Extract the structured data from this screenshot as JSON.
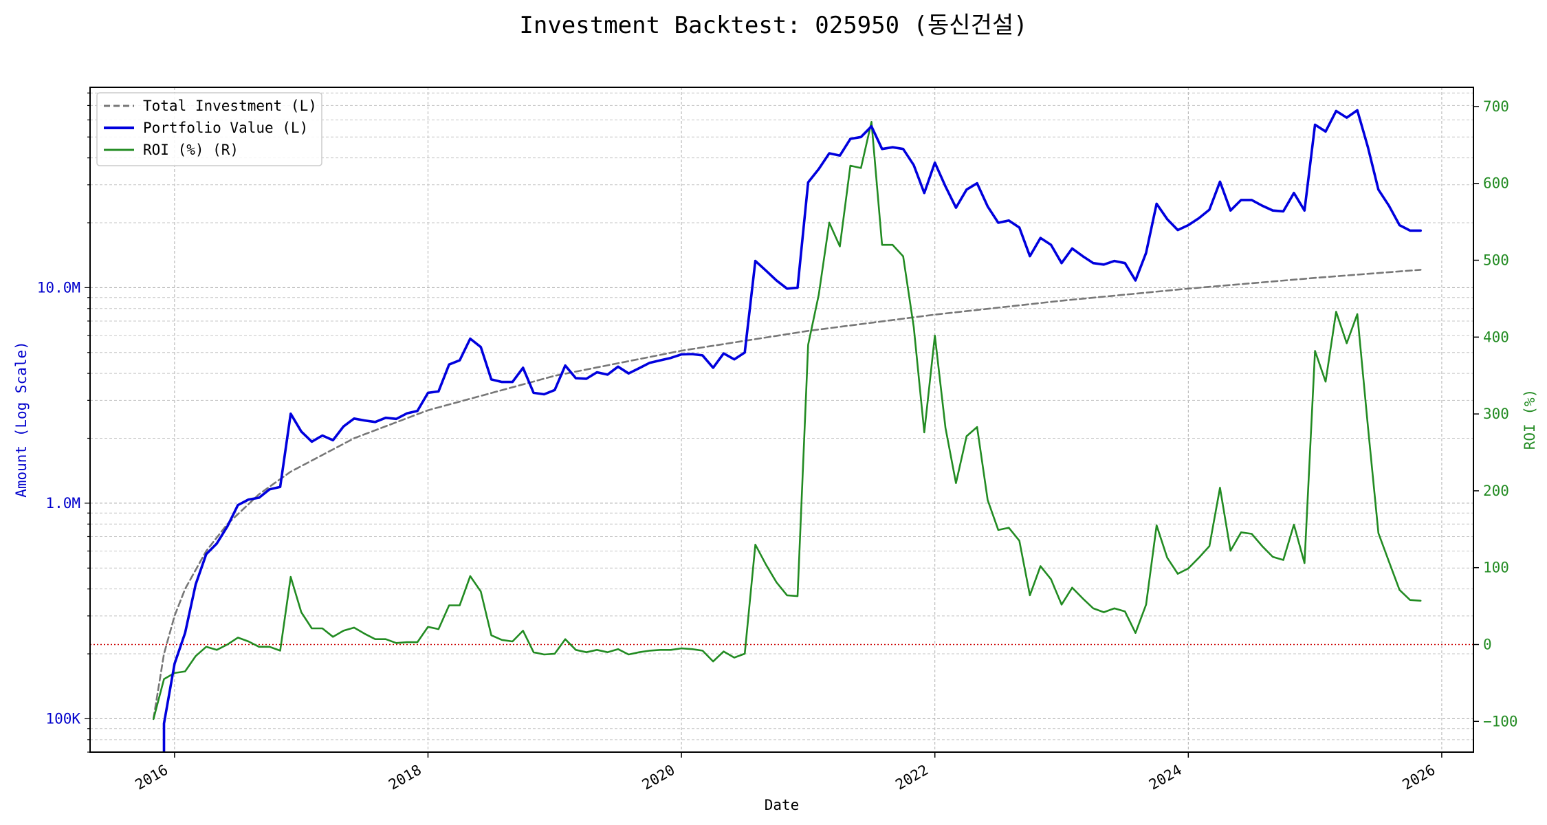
{
  "chart_data": {
    "type": "line",
    "title": "Investment Backtest: 025950 (동신건설)",
    "xlabel": "Date",
    "ylabel_left": "Amount (Log Scale)",
    "ylabel_right": "ROI (%)",
    "left_scale": "log",
    "left_ylim": [
      70000,
      85000000
    ],
    "right_ylim": [
      -140,
      725
    ],
    "xlim": [
      "2015-05-01",
      "2026-04-01"
    ],
    "grid": true,
    "legend_position": "top-left",
    "x_ticks": [
      "2016",
      "2018",
      "2020",
      "2022",
      "2024",
      "2026"
    ],
    "left_ticks": [
      {
        "value": 100000,
        "label": "100K"
      },
      {
        "value": 1000000,
        "label": "1.0M"
      },
      {
        "value": 10000000,
        "label": "10.0M"
      }
    ],
    "right_ticks": [
      -100,
      0,
      100,
      200,
      300,
      400,
      500,
      600,
      700
    ],
    "reference_line": {
      "axis": "right",
      "value": 0,
      "color": "#cc0000",
      "style": "dotted"
    },
    "series": [
      {
        "name": "Total Investment (L)",
        "axis": "left",
        "color": "#777777",
        "style": "dashed",
        "x": [
          "2015-11-01",
          "2015-12-01",
          "2016-01-01",
          "2016-02-01",
          "2016-04-01",
          "2016-06-01",
          "2016-09-01",
          "2016-12-01",
          "2017-06-01",
          "2018-01-01",
          "2019-01-01",
          "2020-01-01",
          "2021-01-01",
          "2022-01-01",
          "2023-01-01",
          "2024-01-01",
          "2025-01-01",
          "2025-11-01"
        ],
        "values": [
          100000,
          200000,
          300000,
          400000,
          600000,
          800000,
          1100000,
          1400000,
          2000000,
          2700000,
          3900000,
          5100000,
          6300000,
          7500000,
          8700000,
          9900000,
          11100000,
          12100000
        ]
      },
      {
        "name": "Portfolio Value (L)",
        "axis": "left",
        "color": "#0000dd",
        "style": "solid",
        "x": [
          "2015-12-01",
          "2016-01-01",
          "2016-02-01",
          "2016-03-01",
          "2016-04-01",
          "2016-05-01",
          "2016-06-01",
          "2016-07-01",
          "2016-08-01",
          "2016-09-01",
          "2016-10-01",
          "2016-11-01",
          "2016-12-01",
          "2017-01-01",
          "2017-02-01",
          "2017-03-01",
          "2017-04-01",
          "2017-05-01",
          "2017-06-01",
          "2017-07-01",
          "2017-08-01",
          "2017-09-01",
          "2017-10-01",
          "2017-11-01",
          "2017-12-01",
          "2018-01-01",
          "2018-02-01",
          "2018-03-01",
          "2018-04-01",
          "2018-05-01",
          "2018-06-01",
          "2018-07-01",
          "2018-08-01",
          "2018-09-01",
          "2018-10-01",
          "2018-11-01",
          "2018-12-01",
          "2019-01-01",
          "2019-02-01",
          "2019-03-01",
          "2019-04-01",
          "2019-05-01",
          "2019-06-01",
          "2019-07-01",
          "2019-08-01",
          "2019-09-01",
          "2019-10-01",
          "2019-11-01",
          "2019-12-01",
          "2020-01-01",
          "2020-02-01",
          "2020-03-01",
          "2020-04-01",
          "2020-05-01",
          "2020-06-01",
          "2020-07-01",
          "2020-08-01",
          "2020-09-01",
          "2020-10-01",
          "2020-11-01",
          "2020-12-01",
          "2021-01-01",
          "2021-02-01",
          "2021-03-01",
          "2021-04-01",
          "2021-05-01",
          "2021-06-01",
          "2021-07-01",
          "2021-08-01",
          "2021-09-01",
          "2021-10-01",
          "2021-11-01",
          "2021-12-01",
          "2022-01-01",
          "2022-02-01",
          "2022-03-01",
          "2022-04-01",
          "2022-05-01",
          "2022-06-01",
          "2022-07-01",
          "2022-08-01",
          "2022-09-01",
          "2022-10-01",
          "2022-11-01",
          "2022-12-01",
          "2023-01-01",
          "2023-02-01",
          "2023-03-01",
          "2023-04-01",
          "2023-05-01",
          "2023-06-01",
          "2023-07-01",
          "2023-08-01",
          "2023-09-01",
          "2023-10-01",
          "2023-11-01",
          "2023-12-01",
          "2024-01-01",
          "2024-02-01",
          "2024-03-01",
          "2024-04-01",
          "2024-05-01",
          "2024-06-01",
          "2024-07-01",
          "2024-08-01",
          "2024-09-01",
          "2024-10-01",
          "2024-11-01",
          "2024-12-01",
          "2025-01-01",
          "2025-02-01",
          "2025-03-01",
          "2025-04-01",
          "2025-05-01",
          "2025-06-01",
          "2025-07-01",
          "2025-08-01",
          "2025-09-01",
          "2025-10-01",
          "2025-11-01"
        ],
        "values": [
          95000,
          180000,
          250000,
          420000,
          580000,
          650000,
          780000,
          980000,
          1040000,
          1060000,
          1160000,
          1190000,
          2600000,
          2150000,
          1930000,
          2060000,
          1960000,
          2270000,
          2470000,
          2420000,
          2380000,
          2490000,
          2460000,
          2610000,
          2680000,
          3250000,
          3300000,
          4400000,
          4600000,
          5800000,
          5300000,
          3750000,
          3650000,
          3650000,
          4250000,
          3250000,
          3200000,
          3350000,
          4350000,
          3800000,
          3780000,
          4050000,
          3950000,
          4300000,
          4000000,
          4230000,
          4480000,
          4600000,
          4720000,
          4900000,
          4920000,
          4850000,
          4250000,
          4950000,
          4650000,
          5000000,
          13300000,
          12000000,
          10800000,
          9900000,
          10000000,
          30800000,
          35500000,
          42000000,
          41000000,
          49000000,
          50000000,
          56000000,
          44000000,
          44800000,
          44000000,
          37000000,
          27500000,
          38000000,
          29500000,
          23500000,
          28500000,
          30500000,
          23800000,
          20000000,
          20500000,
          19000000,
          14000000,
          17000000,
          15800000,
          13000000,
          15200000,
          14000000,
          13000000,
          12800000,
          13300000,
          13000000,
          10800000,
          14500000,
          24500000,
          20800000,
          18500000,
          19500000,
          21000000,
          23000000,
          31000000,
          22800000,
          25500000,
          25500000,
          24000000,
          22800000,
          22600000,
          27500000,
          22800000,
          57000000,
          53000000,
          66000000,
          61500000,
          66500000,
          45000000,
          28500000,
          24000000,
          19500000,
          18400000,
          18400000
        ]
      },
      {
        "name": "ROI (%) (R)",
        "axis": "right",
        "color": "#228b22",
        "style": "solid",
        "x": [
          "2015-11-01",
          "2015-12-01",
          "2016-01-01",
          "2016-02-01",
          "2016-03-01",
          "2016-04-01",
          "2016-05-01",
          "2016-06-01",
          "2016-07-01",
          "2016-08-01",
          "2016-09-01",
          "2016-10-01",
          "2016-11-01",
          "2016-12-01",
          "2017-01-01",
          "2017-02-01",
          "2017-03-01",
          "2017-04-01",
          "2017-05-01",
          "2017-06-01",
          "2017-07-01",
          "2017-08-01",
          "2017-09-01",
          "2017-10-01",
          "2017-11-01",
          "2017-12-01",
          "2018-01-01",
          "2018-02-01",
          "2018-03-01",
          "2018-04-01",
          "2018-05-01",
          "2018-06-01",
          "2018-07-01",
          "2018-08-01",
          "2018-09-01",
          "2018-10-01",
          "2018-11-01",
          "2018-12-01",
          "2019-01-01",
          "2019-02-01",
          "2019-03-01",
          "2019-04-01",
          "2019-05-01",
          "2019-06-01",
          "2019-07-01",
          "2019-08-01",
          "2019-09-01",
          "2019-10-01",
          "2019-11-01",
          "2019-12-01",
          "2020-01-01",
          "2020-02-01",
          "2020-03-01",
          "2020-04-01",
          "2020-05-01",
          "2020-06-01",
          "2020-07-01",
          "2020-08-01",
          "2020-09-01",
          "2020-10-01",
          "2020-11-01",
          "2020-12-01",
          "2021-01-01",
          "2021-02-01",
          "2021-03-01",
          "2021-04-01",
          "2021-05-01",
          "2021-06-01",
          "2021-07-01",
          "2021-08-01",
          "2021-09-01",
          "2021-10-01",
          "2021-11-01",
          "2021-12-01",
          "2022-01-01",
          "2022-02-01",
          "2022-03-01",
          "2022-04-01",
          "2022-05-01",
          "2022-06-01",
          "2022-07-01",
          "2022-08-01",
          "2022-09-01",
          "2022-10-01",
          "2022-11-01",
          "2022-12-01",
          "2023-01-01",
          "2023-02-01",
          "2023-03-01",
          "2023-04-01",
          "2023-05-01",
          "2023-06-01",
          "2023-07-01",
          "2023-08-01",
          "2023-09-01",
          "2023-10-01",
          "2023-11-01",
          "2023-12-01",
          "2024-01-01",
          "2024-02-01",
          "2024-03-01",
          "2024-04-01",
          "2024-05-01",
          "2024-06-01",
          "2024-07-01",
          "2024-08-01",
          "2024-09-01",
          "2024-10-01",
          "2024-11-01",
          "2024-12-01",
          "2025-01-01",
          "2025-02-01",
          "2025-03-01",
          "2025-04-01",
          "2025-05-01",
          "2025-06-01",
          "2025-07-01",
          "2025-08-01",
          "2025-09-01",
          "2025-10-01",
          "2025-11-01"
        ],
        "values": [
          -97,
          -45,
          -37,
          -35,
          -15,
          -3,
          -7,
          0,
          9,
          4,
          -3,
          -3,
          -8,
          88,
          42,
          21,
          21,
          10,
          18,
          22,
          14,
          7,
          7,
          2,
          3,
          3,
          23,
          20,
          51,
          51,
          89,
          69,
          12,
          6,
          4,
          18,
          -10,
          -13,
          -12,
          7,
          -7,
          -10,
          -7,
          -10,
          -6,
          -13,
          -10,
          -8,
          -7,
          -7,
          -5,
          -6,
          -8,
          -22,
          -9,
          -17,
          -12,
          130,
          104,
          81,
          64,
          63,
          390,
          455,
          549,
          518,
          623,
          620,
          680,
          520,
          520,
          505,
          413,
          276,
          402,
          282,
          210,
          271,
          283,
          188,
          149,
          152,
          135,
          64,
          102,
          85,
          52,
          74,
          60,
          47,
          42,
          47,
          43,
          15,
          52,
          155,
          113,
          92,
          99,
          113,
          128,
          204,
          122,
          146,
          144,
          128,
          114,
          110,
          156,
          106,
          382,
          342,
          433,
          392,
          430,
          285,
          145,
          108,
          71,
          58,
          57
        ]
      }
    ]
  }
}
